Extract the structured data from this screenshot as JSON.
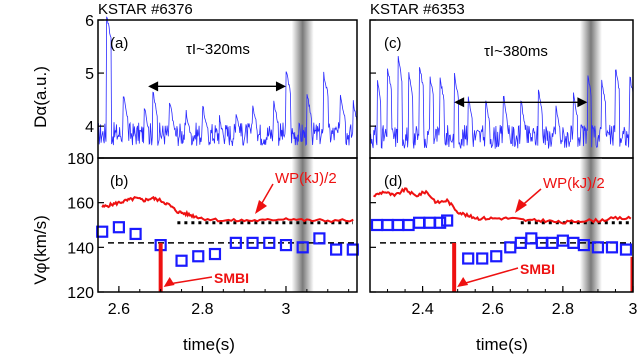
{
  "chart_data": [
    {
      "id": "a",
      "panel_label": "(a)",
      "type": "line",
      "shot_title": "KSTAR #6376",
      "ylabel": "Dα(a.u.)",
      "xlim": [
        2.55,
        3.17
      ],
      "ylim": [
        3.4,
        6.0
      ],
      "y_ticks": [
        "4",
        "5",
        "6"
      ],
      "annotation": "τI~320ms",
      "annotation_range": [
        2.67,
        3.0
      ],
      "annotation_y": 4.75,
      "shaded_band_x": 3.04,
      "series": [
        {
          "color": "#2a2aff",
          "elm_times": [
            2.57,
            2.61,
            2.66,
            2.68,
            2.72,
            2.76,
            2.8,
            2.84,
            2.88,
            2.92,
            2.97,
            3.0,
            3.05,
            3.09,
            3.13,
            3.16
          ],
          "elm_peaks": [
            6.1,
            4.6,
            4.4,
            4.7,
            4.5,
            4.3,
            4.4,
            4.2,
            4.3,
            4.4,
            4.5,
            5.05,
            4.6,
            5.0,
            4.6,
            4.5
          ],
          "baseline": 3.85
        }
      ]
    },
    {
      "id": "c",
      "panel_label": "(c)",
      "type": "line",
      "shot_title": "KSTAR #6353",
      "ylabel": "",
      "xlim": [
        2.25,
        3.0
      ],
      "ylim": [
        3.4,
        6.0
      ],
      "annotation": "τI~380ms",
      "annotation_range": [
        2.49,
        2.87
      ],
      "annotation_y": 4.45,
      "shaded_band_x": 2.88,
      "series": [
        {
          "color": "#2a2aff",
          "elm_times": [
            2.27,
            2.3,
            2.33,
            2.36,
            2.39,
            2.42,
            2.45,
            2.49,
            2.53,
            2.58,
            2.63,
            2.68,
            2.73,
            2.78,
            2.83,
            2.87,
            2.91,
            2.95,
            2.99
          ],
          "elm_peaks": [
            4.9,
            5.1,
            5.3,
            5.0,
            5.2,
            5.0,
            4.9,
            5.0,
            4.6,
            4.5,
            4.6,
            4.5,
            4.7,
            4.4,
            4.6,
            5.0,
            4.9,
            5.1,
            5.0
          ],
          "baseline": 3.8
        }
      ]
    },
    {
      "id": "b",
      "panel_label": "(b)",
      "type": "scatter",
      "ylabel": "Vφ(km/s)",
      "xlabel": "time(s)",
      "xlim": [
        2.55,
        3.17
      ],
      "ylim": [
        120,
        180
      ],
      "x_ticks": [
        "2.6",
        "2.8",
        "3"
      ],
      "x_tick_values": [
        2.6,
        2.8,
        3.0
      ],
      "y_ticks": [
        "120",
        "140",
        "160",
        "180"
      ],
      "y_tick_values": [
        120,
        140,
        160,
        180
      ],
      "shaded_band_x": 3.04,
      "wp_label": "WP(kJ)/2",
      "smbi_label": "SMBI",
      "smbi_x": 2.7,
      "dashed_level": 142,
      "dotted_level": 151,
      "dotted_start": 2.74,
      "vphi_x": [
        2.56,
        2.6,
        2.64,
        2.7,
        2.75,
        2.79,
        2.83,
        2.88,
        2.92,
        2.96,
        3.0,
        3.04,
        3.08,
        3.12,
        3.16
      ],
      "vphi_y": [
        147,
        149,
        146,
        141,
        134,
        136,
        137,
        142,
        142,
        142,
        141,
        140,
        144,
        139,
        139
      ],
      "wp_x": [
        2.56,
        2.58,
        2.6,
        2.62,
        2.64,
        2.66,
        2.68,
        2.7,
        2.72,
        2.74,
        2.76,
        2.78,
        2.8,
        2.85,
        2.9,
        2.95,
        3.0,
        3.05,
        3.1,
        3.17
      ],
      "wp_y": [
        158,
        159,
        160,
        161,
        162,
        161,
        162,
        161,
        159,
        156,
        155,
        154,
        153,
        152,
        152,
        152,
        153,
        152,
        152,
        152
      ]
    },
    {
      "id": "d",
      "panel_label": "(d)",
      "type": "scatter",
      "ylabel": "",
      "xlabel": "time(s)",
      "xlim": [
        2.25,
        3.0
      ],
      "ylim": [
        120,
        180
      ],
      "x_ticks": [
        "2.4",
        "2.6",
        "2.8",
        "3"
      ],
      "x_tick_values": [
        2.4,
        2.6,
        2.8,
        3.0
      ],
      "shaded_band_x": 2.88,
      "wp_label": "WP(kJ)/2",
      "smbi_label": "SMBI",
      "smbi_x": 2.49,
      "dashed_level": 142,
      "dotted_level": 151,
      "dotted_start": 2.68,
      "vphi_x": [
        2.27,
        2.3,
        2.33,
        2.36,
        2.39,
        2.42,
        2.45,
        2.47,
        2.53,
        2.57,
        2.61,
        2.65,
        2.68,
        2.71,
        2.74,
        2.77,
        2.8,
        2.83,
        2.86,
        2.9,
        2.94,
        2.98
      ],
      "vphi_y": [
        150,
        150,
        150,
        150,
        151,
        151,
        151,
        152,
        135,
        135,
        136,
        140,
        142,
        144,
        142,
        142,
        143,
        142,
        141,
        140,
        140,
        139
      ],
      "wp_x": [
        2.26,
        2.29,
        2.32,
        2.35,
        2.38,
        2.41,
        2.44,
        2.47,
        2.5,
        2.53,
        2.56,
        2.6,
        2.65,
        2.7,
        2.75,
        2.8,
        2.85,
        2.9,
        2.95,
        3.0
      ],
      "wp_y": [
        163,
        165,
        163,
        166,
        163,
        165,
        160,
        161,
        156,
        154,
        153,
        153,
        153,
        152,
        152,
        151,
        152,
        152,
        153,
        153
      ]
    }
  ]
}
